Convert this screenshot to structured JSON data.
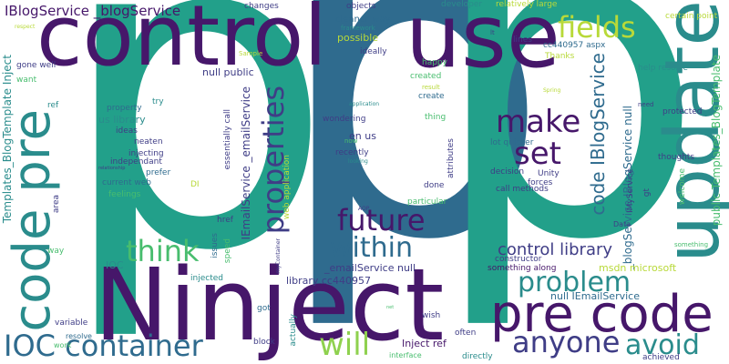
{
  "colors": {
    "teal": "#22a08a",
    "dark_purple": "#46176a",
    "purple": "#3f3d86",
    "blue": "#2f6b8e",
    "green": "#48bd6e",
    "lime": "#b8d939",
    "mid_teal": "#2a8c8c",
    "light_green": "#8fd14f"
  },
  "words": [
    {
      "text": "p"
    },
    {
      "text": "p"
    },
    {
      "text": "p"
    },
    {
      "text": "control"
    },
    {
      "text": "use"
    },
    {
      "text": "Ninject"
    },
    {
      "text": "update"
    },
    {
      "text": "code pre"
    },
    {
      "text": "pre code"
    },
    {
      "text": "IOC container"
    },
    {
      "text": "anyone"
    },
    {
      "text": "avoid"
    },
    {
      "text": "will"
    },
    {
      "text": "make"
    },
    {
      "text": "set"
    },
    {
      "text": "fields"
    },
    {
      "text": "future"
    },
    {
      "text": "within"
    },
    {
      "text": "think"
    },
    {
      "text": "problem"
    },
    {
      "text": "properties"
    },
    {
      "text": "control library"
    },
    {
      "text": "code IBlogService"
    },
    {
      "text": "IBlogService _blogService"
    },
    {
      "text": "_blogService IBlogService null"
    },
    {
      "text": "Templates_BlogTemplate Inject"
    },
    {
      "text": "public Templates_BlogTemplate"
    },
    {
      "text": "IEmailService _emailService"
    },
    {
      "text": "changes"
    },
    {
      "text": "objects"
    },
    {
      "text": "developer"
    },
    {
      "text": "relatively large"
    },
    {
      "text": "cleaner way"
    },
    {
      "text": "ideally"
    },
    {
      "text": "lines"
    },
    {
      "text": "cc440957 aspx"
    },
    {
      "text": "certain point"
    },
    {
      "text": "happy"
    },
    {
      "text": "created"
    },
    {
      "text": "create"
    },
    {
      "text": "null public"
    },
    {
      "text": "gone well"
    },
    {
      "text": "want"
    },
    {
      "text": "ref"
    },
    {
      "text": "possible"
    },
    {
      "text": "Thanks"
    },
    {
      "text": "help resolve"
    },
    {
      "text": "protected"
    },
    {
      "text": "property"
    },
    {
      "text": "try"
    },
    {
      "text": "us library"
    },
    {
      "text": "ideas"
    },
    {
      "text": "neaten"
    },
    {
      "text": "injecting"
    },
    {
      "text": "independant"
    },
    {
      "text": "prefer"
    },
    {
      "text": "current web"
    },
    {
      "text": "feelings"
    },
    {
      "text": "DI"
    },
    {
      "text": "essentially call"
    },
    {
      "text": "web application"
    },
    {
      "text": "wondering"
    },
    {
      "text": "en us"
    },
    {
      "text": "recently"
    },
    {
      "text": "thing"
    },
    {
      "text": "lot quicker"
    },
    {
      "text": "decision"
    },
    {
      "text": "forces"
    },
    {
      "text": "call methods"
    },
    {
      "text": "Unity"
    },
    {
      "text": "IMyService"
    },
    {
      "text": "thoughts"
    },
    {
      "text": "welcome"
    },
    {
      "text": "gt"
    },
    {
      "text": "attributes"
    },
    {
      "text": "done"
    },
    {
      "text": "particular"
    },
    {
      "text": "constructor"
    },
    {
      "text": "something along"
    },
    {
      "text": "msdn microsoft"
    },
    {
      "text": "null IEmailService"
    },
    {
      "text": "_emailService null"
    },
    {
      "text": "library cc440957"
    },
    {
      "text": "Inject ref"
    },
    {
      "text": "IOC"
    },
    {
      "text": "issues"
    },
    {
      "text": "speed"
    },
    {
      "text": "injected"
    },
    {
      "text": "href"
    },
    {
      "text": "area"
    },
    {
      "text": "way"
    },
    {
      "text": "variable"
    },
    {
      "text": "resolve"
    },
    {
      "text": "work"
    },
    {
      "text": "got"
    },
    {
      "text": "actually"
    },
    {
      "text": "block"
    },
    {
      "text": "wish"
    },
    {
      "text": "often"
    },
    {
      "text": "directly"
    },
    {
      "text": "achieved"
    },
    {
      "text": "interface"
    },
    {
      "text": "Data"
    },
    {
      "text": "something"
    },
    {
      "text": "need"
    },
    {
      "text": "result"
    },
    {
      "text": "Spring"
    },
    {
      "text": "application"
    },
    {
      "text": "now"
    },
    {
      "text": "looking"
    },
    {
      "text": "relationship"
    },
    {
      "text": "AOP"
    },
    {
      "text": "myContainer"
    },
    {
      "text": "net"
    },
    {
      "text": "Sample"
    },
    {
      "text": "framework"
    },
    {
      "text": "lt"
    },
    {
      "text": "respect"
    }
  ]
}
